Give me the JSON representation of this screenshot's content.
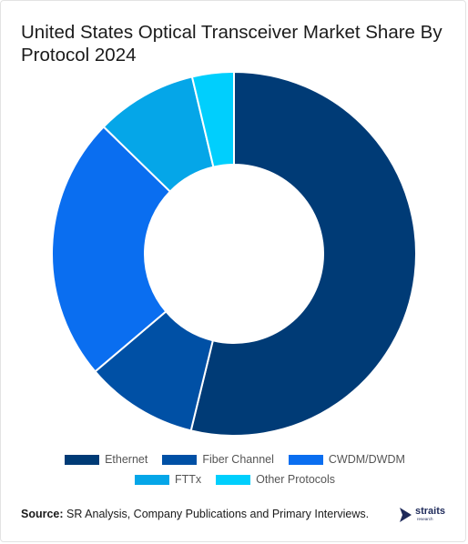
{
  "header": {
    "title": "United States Optical Transceiver Market Share By Protocol 2024"
  },
  "chart_data": {
    "type": "pie",
    "donut": true,
    "categories": [
      "Ethernet",
      "Fiber Channel",
      "CWDM/DWDM",
      "FTTx",
      "Other Protocols"
    ],
    "values": [
      53.8,
      10.0,
      23.5,
      9.0,
      3.7
    ],
    "colors": [
      "#003b76",
      "#0050a5",
      "#0a6ef0",
      "#05a6e8",
      "#00cffd"
    ],
    "legend_placement": "bottom"
  },
  "footer": {
    "source_label": "Source:",
    "source_text": "SR Analysis, Company Publications and Primary Interviews."
  },
  "logo": {
    "name": "straits",
    "sub": "research",
    "icon": "straits-logo-icon"
  }
}
